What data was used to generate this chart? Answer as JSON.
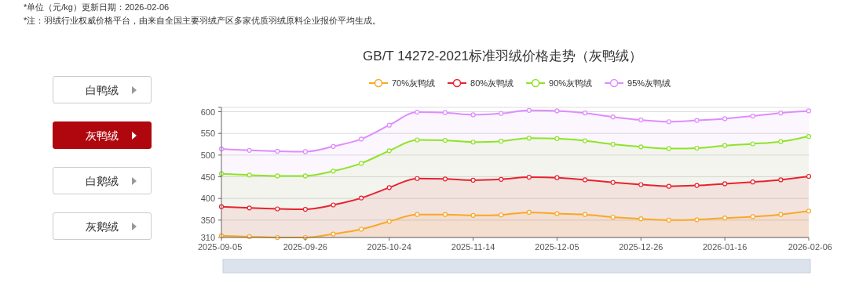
{
  "chart_data": [
    {
      "type": "other",
      "annotations": [
        "白鸭绒",
        "灰鸭绒",
        "白鹅绒",
        "灰鹅绒"
      ]
    },
    {
      "type": "area",
      "title": "GB/T 14272-2021标准羽绒价格走势（灰鸭绒）",
      "annotations": [
        "*单位（元/kg）更新日期：2026-02-06",
        "*注：羽绒行业权威价格平台，由来自全国主要羽绒产区多家优质羽绒原料企业报价平均生成。"
      ],
      "categories": [
        "2025-09-05",
        null,
        null,
        "2025-09-26",
        null,
        null,
        "2025-10-24",
        null,
        null,
        "2025-11-14",
        null,
        null,
        "2025-12-05",
        null,
        null,
        "2025-12-26",
        null,
        null,
        "2026-01-16",
        null,
        null,
        "2026-02-06"
      ],
      "series": [
        {
          "name": "70%灰鸭绒",
          "color": "#f9a825",
          "values": [
            314,
            312,
            310,
            310,
            318,
            329,
            347,
            363,
            363,
            361,
            362,
            368,
            365,
            363,
            357,
            353,
            350,
            351,
            355,
            358,
            363,
            371
          ]
        },
        {
          "name": "80%灰鸭绒",
          "color": "#e8232f",
          "values": [
            381,
            378,
            376,
            375,
            385,
            401,
            425,
            446,
            445,
            442,
            444,
            449,
            448,
            443,
            437,
            432,
            428,
            430,
            434,
            438,
            443,
            451
          ]
        },
        {
          "name": "90%灰鸭绒",
          "color": "#8ee426",
          "values": [
            457,
            454,
            452,
            452,
            463,
            481,
            510,
            535,
            534,
            530,
            532,
            539,
            538,
            533,
            525,
            519,
            515,
            516,
            522,
            526,
            531,
            543
          ]
        },
        {
          "name": "95%灰鸭绒",
          "color": "#de8cff",
          "values": [
            514,
            511,
            509,
            508,
            520,
            537,
            569,
            599,
            598,
            593,
            596,
            603,
            602,
            597,
            588,
            581,
            577,
            580,
            584,
            590,
            597,
            602
          ]
        }
      ],
      "ylim": [
        310,
        610
      ],
      "yticks": [
        310,
        350,
        400,
        450,
        500,
        550,
        600,
        {
          "value": 610,
          "label": null
        }
      ],
      "grid": "y",
      "legend": "top",
      "marker": "circle",
      "line_style": "solid"
    }
  ]
}
